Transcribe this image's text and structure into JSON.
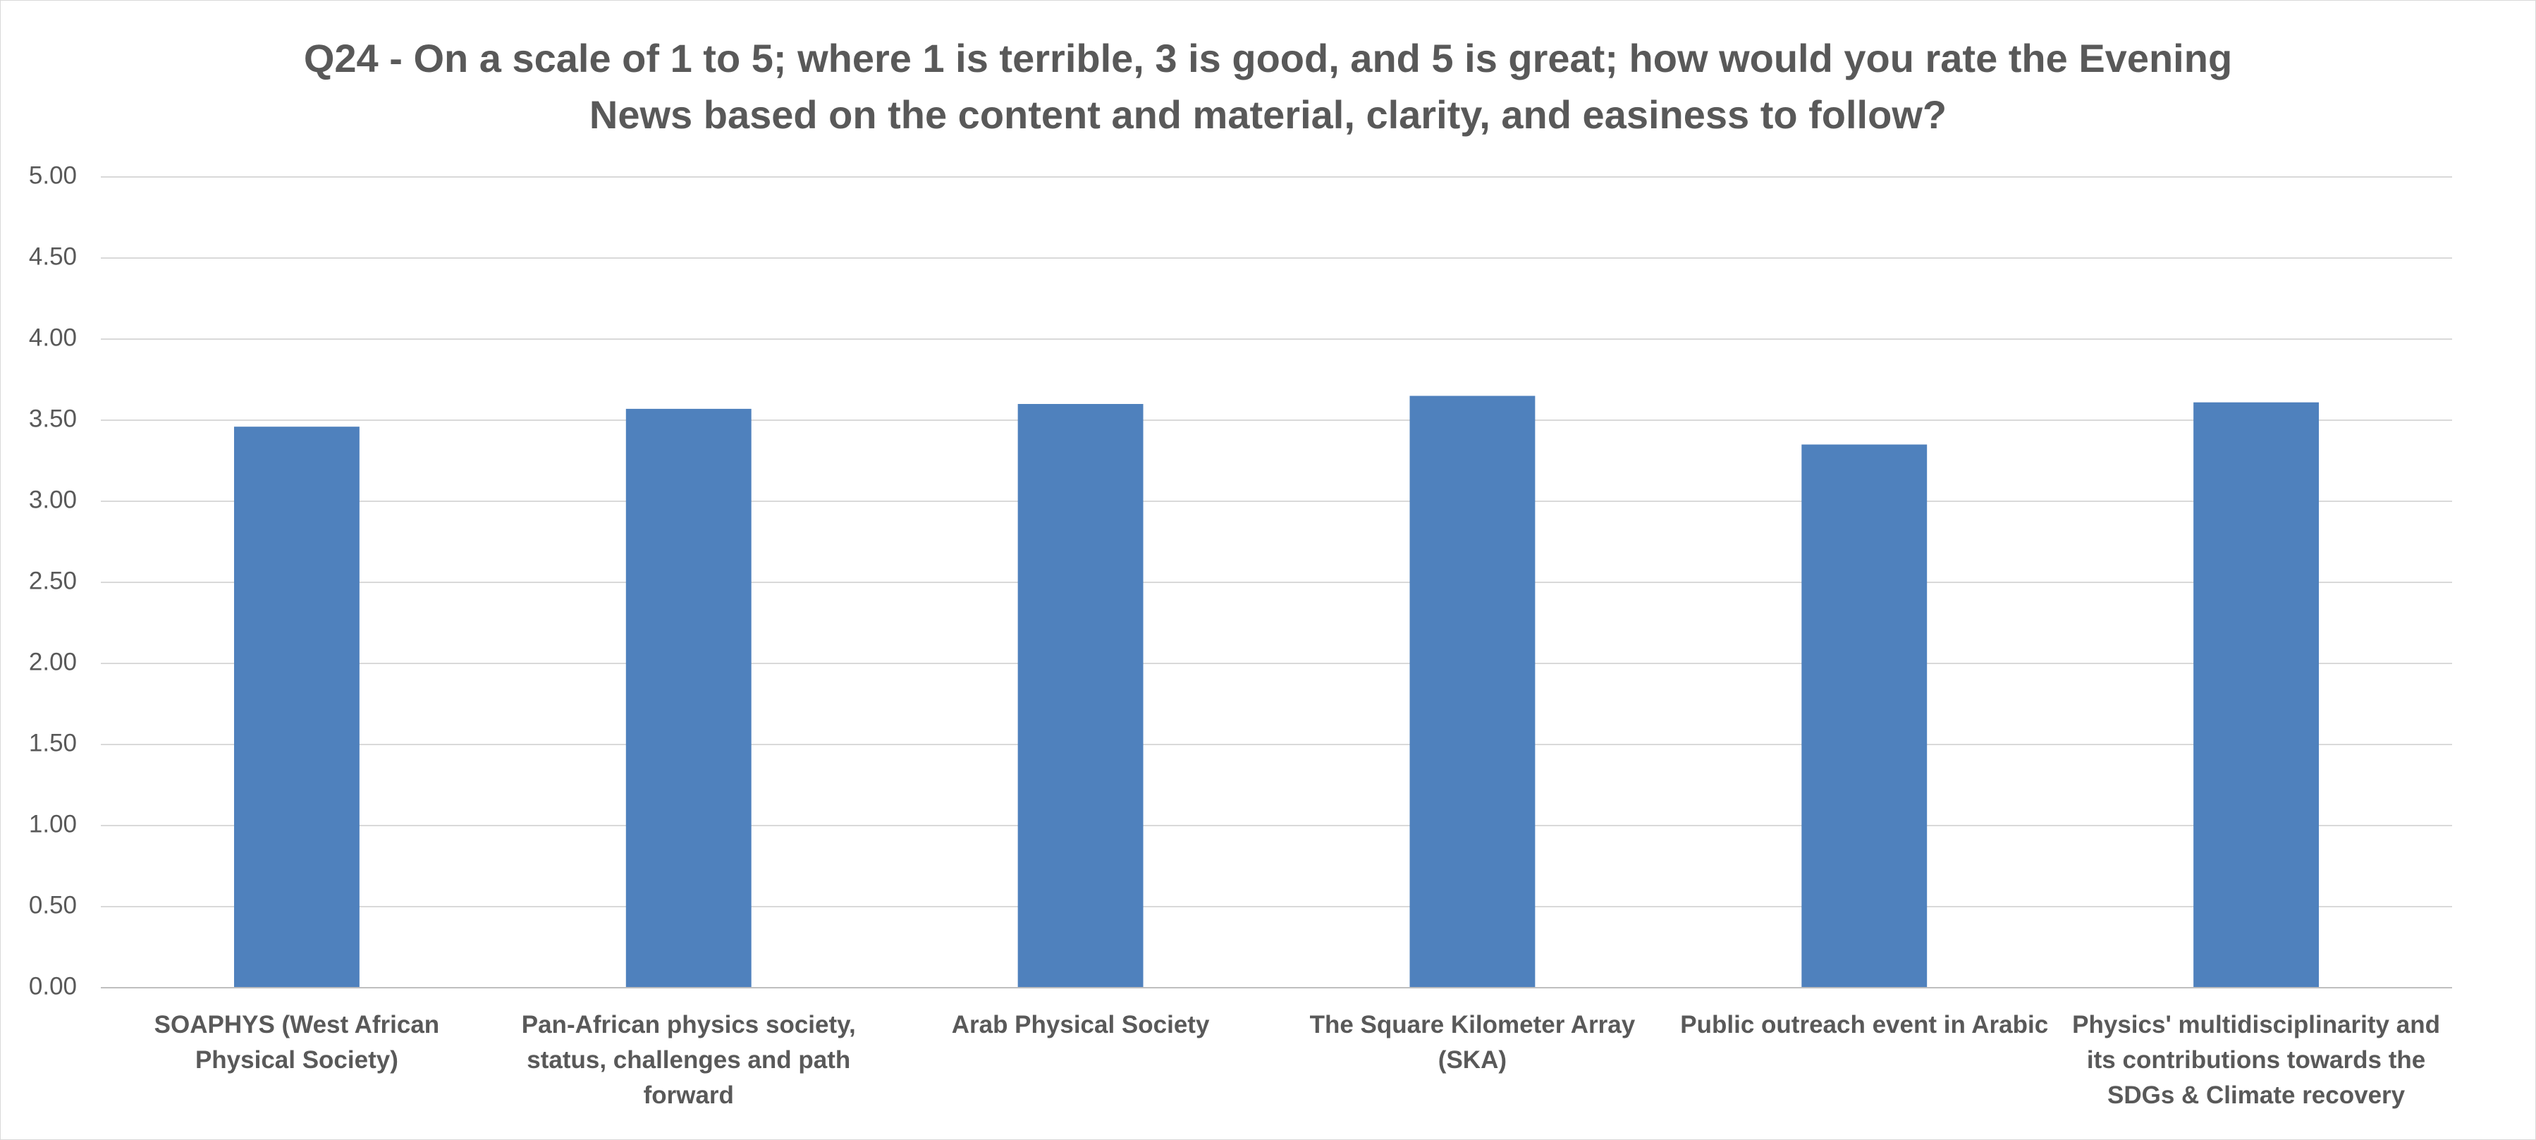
{
  "chart_data": {
    "type": "bar",
    "title": "Q24 - On a scale of 1 to 5; where 1 is terrible, 3 is good, and 5 is great; how would you rate the Evening News based on the content and material, clarity, and easiness to follow?",
    "categories": [
      "SOAPHYS (West African Physical Society)",
      "Pan-African physics society, status, challenges and path forward",
      "Arab Physical Society",
      "The Square Kilometer Array (SKA)",
      "Public outreach event in Arabic",
      "Physics' multidisciplinarity and its contributions towards the SDGs & Climate recovery"
    ],
    "values": [
      3.46,
      3.57,
      3.6,
      3.65,
      3.35,
      3.61
    ],
    "color": "#4f81bd",
    "ylim": [
      0,
      5
    ],
    "yticks": [
      {
        "value": 0,
        "label": "0.00"
      },
      {
        "value": 0.5,
        "label": "0.50"
      },
      {
        "value": 1,
        "label": "1.00"
      },
      {
        "value": 1.5,
        "label": "1.50"
      },
      {
        "value": 2,
        "label": "2.00"
      },
      {
        "value": 2.5,
        "label": "2.50"
      },
      {
        "value": 3,
        "label": "3.00"
      },
      {
        "value": 3.5,
        "label": "3.50"
      },
      {
        "value": 4,
        "label": "4.00"
      },
      {
        "value": 4.5,
        "label": "4.50"
      },
      {
        "value": 5,
        "label": "5.00"
      }
    ],
    "grid": true
  }
}
